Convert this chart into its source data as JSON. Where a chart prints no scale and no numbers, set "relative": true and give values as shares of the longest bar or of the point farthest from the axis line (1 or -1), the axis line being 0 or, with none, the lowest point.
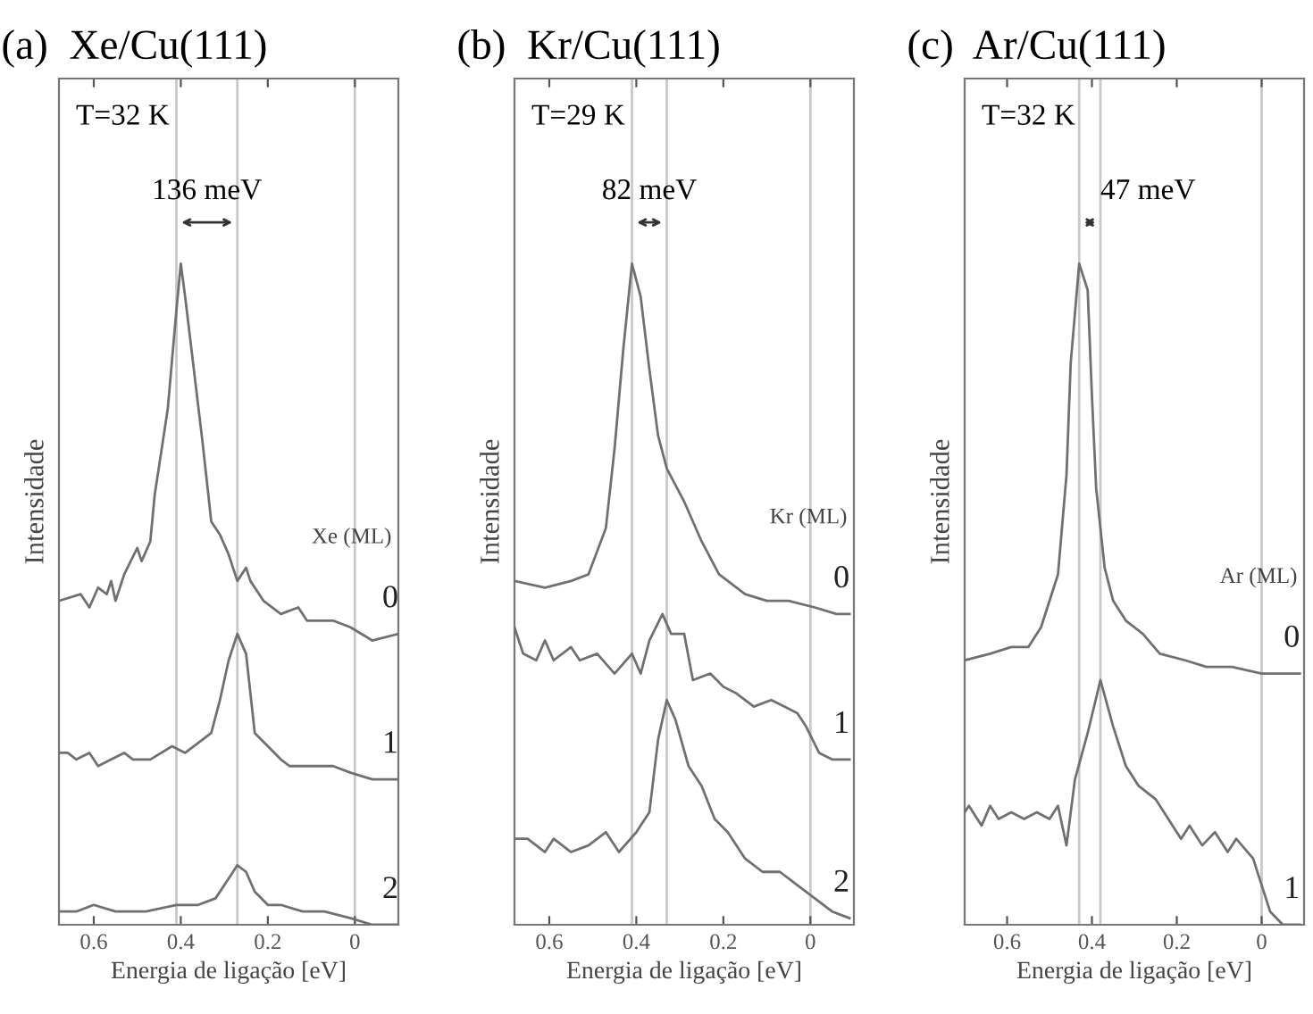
{
  "chart_data": [
    {
      "type": "line",
      "title": "(a)  Xe/Cu(111)",
      "xlabel": "Energia de ligação [eV]",
      "ylabel": "Intensidade",
      "legend_title": "Xe (ML)",
      "relative": true,
      "xlim": [
        0.68,
        -0.1
      ],
      "xticks": [
        0.6,
        0.4,
        0.2,
        0
      ],
      "tick_labels": "x",
      "grid": false,
      "annotations": [
        "T=32 K",
        "136 meV"
      ],
      "ref_lines": [
        {
          "axis": "x",
          "value": 0.41,
          "color": "#c8c8c8"
        },
        {
          "axis": "x",
          "value": 0.27,
          "color": "#c8c8c8"
        },
        {
          "axis": "x",
          "value": 0,
          "color": "#c8c8c8"
        }
      ],
      "series": [
        {
          "name": "0",
          "color": "#707070",
          "x": [
            0.68,
            0.63,
            0.61,
            0.59,
            0.57,
            0.56,
            0.55,
            0.53,
            0.5,
            0.49,
            0.47,
            0.46,
            0.43,
            0.41,
            0.4,
            0.39,
            0.37,
            0.35,
            0.33,
            0.31,
            0.29,
            0.27,
            0.25,
            0.24,
            0.21,
            0.17,
            0.13,
            0.11,
            0.05,
            0.01,
            -0.04,
            -0.1
          ],
          "values": [
            0.49,
            0.5,
            0.48,
            0.51,
            0.5,
            0.52,
            0.49,
            0.53,
            0.57,
            0.55,
            0.58,
            0.65,
            0.78,
            0.93,
            1.0,
            0.95,
            0.84,
            0.73,
            0.61,
            0.59,
            0.56,
            0.52,
            0.54,
            0.52,
            0.49,
            0.47,
            0.48,
            0.46,
            0.46,
            0.45,
            0.43,
            0.44
          ]
        },
        {
          "name": "1",
          "color": "#707070",
          "x": [
            0.68,
            0.66,
            0.64,
            0.61,
            0.59,
            0.56,
            0.53,
            0.51,
            0.47,
            0.42,
            0.39,
            0.35,
            0.33,
            0.31,
            0.29,
            0.27,
            0.25,
            0.23,
            0.2,
            0.17,
            0.15,
            0.1,
            0.05,
            0.01,
            -0.04,
            -0.1
          ],
          "values": [
            0.26,
            0.26,
            0.25,
            0.26,
            0.24,
            0.25,
            0.26,
            0.25,
            0.25,
            0.27,
            0.26,
            0.28,
            0.29,
            0.34,
            0.4,
            0.44,
            0.41,
            0.29,
            0.27,
            0.25,
            0.24,
            0.24,
            0.24,
            0.23,
            0.22,
            0.22
          ]
        },
        {
          "name": "2",
          "color": "#707070",
          "x": [
            0.68,
            0.64,
            0.6,
            0.55,
            0.48,
            0.41,
            0.36,
            0.32,
            0.29,
            0.27,
            0.25,
            0.23,
            0.2,
            0.17,
            0.12,
            0.07,
            0.01,
            -0.04,
            -0.1
          ],
          "values": [
            0.02,
            0.02,
            0.03,
            0.02,
            0.02,
            0.03,
            0.03,
            0.04,
            0.07,
            0.09,
            0.08,
            0.05,
            0.03,
            0.03,
            0.02,
            0.02,
            0.01,
            0.0,
            0.0
          ]
        }
      ]
    },
    {
      "type": "line",
      "title": "(b)  Kr/Cu(111)",
      "xlabel": "Energia de ligação [eV]",
      "ylabel": "Intensidade",
      "legend_title": "Kr (ML)",
      "relative": true,
      "xlim": [
        0.68,
        -0.1
      ],
      "xticks": [
        0.6,
        0.4,
        0.2,
        0
      ],
      "tick_labels": "x",
      "grid": false,
      "annotations": [
        "T=29 K",
        "82 meV"
      ],
      "ref_lines": [
        {
          "axis": "x",
          "value": 0.41,
          "color": "#c8c8c8"
        },
        {
          "axis": "x",
          "value": 0.33,
          "color": "#c8c8c8"
        },
        {
          "axis": "x",
          "value": 0,
          "color": "#c8c8c8"
        }
      ],
      "series": [
        {
          "name": "0",
          "color": "#707070",
          "x": [
            0.68,
            0.61,
            0.55,
            0.51,
            0.47,
            0.45,
            0.43,
            0.41,
            0.39,
            0.37,
            0.35,
            0.33,
            0.29,
            0.25,
            0.21,
            0.15,
            0.1,
            0.05,
            -0.01,
            -0.06,
            -0.09
          ],
          "values": [
            0.52,
            0.51,
            0.52,
            0.53,
            0.6,
            0.72,
            0.87,
            1.0,
            0.95,
            0.84,
            0.74,
            0.69,
            0.64,
            0.58,
            0.53,
            0.5,
            0.49,
            0.49,
            0.48,
            0.47,
            0.47
          ]
        },
        {
          "name": "1",
          "color": "#707070",
          "x": [
            0.68,
            0.66,
            0.63,
            0.61,
            0.59,
            0.55,
            0.53,
            0.49,
            0.45,
            0.41,
            0.39,
            0.37,
            0.34,
            0.32,
            0.29,
            0.27,
            0.23,
            0.2,
            0.17,
            0.13,
            0.09,
            0.06,
            0.03,
            0.01,
            -0.02,
            -0.05,
            -0.09
          ],
          "values": [
            0.45,
            0.41,
            0.4,
            0.43,
            0.4,
            0.42,
            0.4,
            0.41,
            0.38,
            0.41,
            0.38,
            0.43,
            0.47,
            0.44,
            0.44,
            0.37,
            0.38,
            0.36,
            0.35,
            0.33,
            0.34,
            0.33,
            0.32,
            0.3,
            0.26,
            0.25,
            0.25
          ]
        },
        {
          "name": "2",
          "color": "#707070",
          "x": [
            0.68,
            0.65,
            0.61,
            0.59,
            0.55,
            0.51,
            0.47,
            0.44,
            0.4,
            0.37,
            0.35,
            0.33,
            0.31,
            0.28,
            0.25,
            0.22,
            0.19,
            0.15,
            0.11,
            0.07,
            0.03,
            -0.01,
            -0.05,
            -0.09
          ],
          "values": [
            0.13,
            0.13,
            0.11,
            0.13,
            0.11,
            0.12,
            0.14,
            0.11,
            0.14,
            0.17,
            0.28,
            0.34,
            0.31,
            0.24,
            0.21,
            0.16,
            0.14,
            0.1,
            0.08,
            0.08,
            0.06,
            0.04,
            0.02,
            0.01
          ]
        }
      ]
    },
    {
      "type": "line",
      "title": "(c)  Ar/Cu(111)",
      "xlabel": "Energia de ligação [eV]",
      "ylabel": "Intensidade",
      "legend_title": "Ar (ML)",
      "relative": true,
      "xlim": [
        0.7,
        -0.1
      ],
      "xticks": [
        0.6,
        0.4,
        0.2,
        0
      ],
      "tick_labels": "x",
      "grid": false,
      "annotations": [
        "T=32 K",
        "47 meV"
      ],
      "ref_lines": [
        {
          "axis": "x",
          "value": 0.43,
          "color": "#c8c8c8"
        },
        {
          "axis": "x",
          "value": 0.38,
          "color": "#c8c8c8"
        },
        {
          "axis": "x",
          "value": 0,
          "color": "#c8c8c8"
        }
      ],
      "series": [
        {
          "name": "0",
          "color": "#707070",
          "x": [
            0.7,
            0.64,
            0.59,
            0.55,
            0.52,
            0.48,
            0.46,
            0.45,
            0.43,
            0.41,
            0.4,
            0.39,
            0.37,
            0.35,
            0.32,
            0.28,
            0.24,
            0.18,
            0.13,
            0.07,
            0,
            -0.09
          ],
          "values": [
            0.4,
            0.41,
            0.42,
            0.42,
            0.45,
            0.53,
            0.68,
            0.85,
            1.0,
            0.96,
            0.8,
            0.66,
            0.54,
            0.49,
            0.46,
            0.44,
            0.41,
            0.4,
            0.39,
            0.39,
            0.38,
            0.38
          ]
        },
        {
          "name": "1",
          "color": "#707070",
          "x": [
            0.7,
            0.69,
            0.66,
            0.64,
            0.62,
            0.59,
            0.56,
            0.53,
            0.5,
            0.48,
            0.46,
            0.44,
            0.41,
            0.38,
            0.35,
            0.32,
            0.29,
            0.25,
            0.22,
            0.19,
            0.17,
            0.14,
            0.11,
            0.08,
            0.06,
            0.02,
            0,
            -0.02,
            -0.05,
            -0.09
          ],
          "values": [
            0.17,
            0.18,
            0.15,
            0.18,
            0.16,
            0.17,
            0.16,
            0.17,
            0.16,
            0.18,
            0.12,
            0.22,
            0.29,
            0.37,
            0.3,
            0.24,
            0.21,
            0.19,
            0.16,
            0.13,
            0.15,
            0.12,
            0.14,
            0.11,
            0.13,
            0.1,
            0.06,
            0.02,
            0.0,
            0.0
          ]
        }
      ]
    }
  ]
}
